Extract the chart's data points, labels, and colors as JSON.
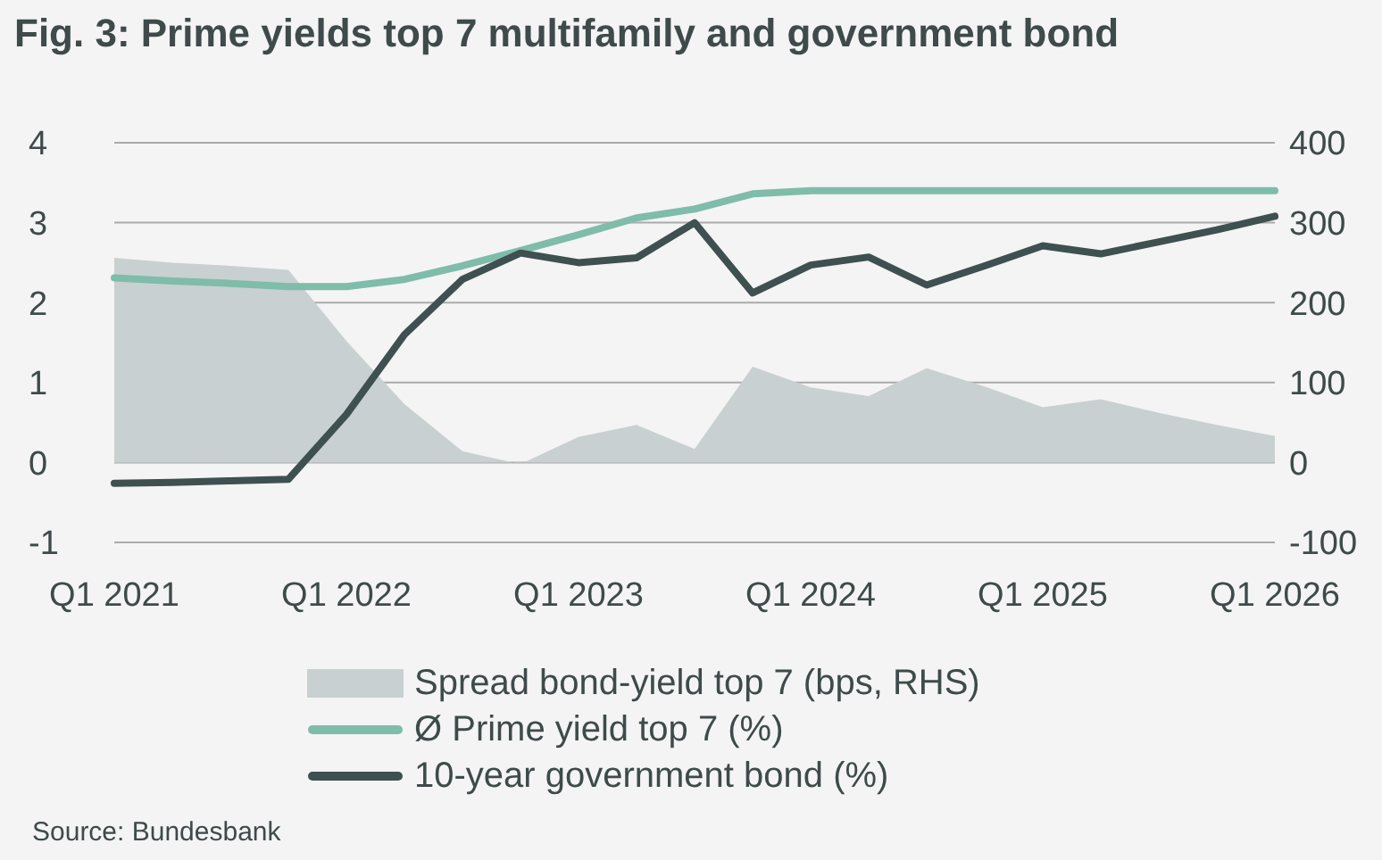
{
  "chart_data": {
    "type": "line",
    "title": "Fig. 3: Prime yields top 7 multifamily and government bond",
    "categories": [
      "Q1 2021",
      null,
      null,
      null,
      "Q1 2022",
      null,
      null,
      null,
      "Q1 2023",
      null,
      null,
      null,
      "Q1 2024",
      null,
      null,
      null,
      "Q1 2025",
      null,
      null,
      null,
      "Q1 2026"
    ],
    "series": [
      {
        "name": "Spread bond-yield top 7 (bps, RHS)",
        "type": "area",
        "axis": "y2",
        "color": "#c9d0d1",
        "values": [
          256,
          250,
          246,
          241,
          152,
          73,
          14,
          -2,
          32,
          47,
          17,
          120,
          94,
          83,
          118,
          95,
          69,
          79,
          62,
          47,
          33
        ]
      },
      {
        "name": "Ø Prime yield top 7 (%)",
        "color": "#7fbcaa",
        "values": [
          2.31,
          2.27,
          2.24,
          2.2,
          2.2,
          2.29,
          2.46,
          2.65,
          2.85,
          3.06,
          3.17,
          3.36,
          3.4,
          3.4,
          3.4,
          3.4,
          3.4,
          3.4,
          3.4,
          3.4,
          3.4
        ]
      },
      {
        "name": "10-year government bond (%)",
        "color": "#3f5050",
        "values": [
          -0.26,
          -0.25,
          -0.23,
          -0.21,
          0.6,
          1.6,
          2.29,
          2.62,
          2.5,
          2.56,
          3.0,
          2.12,
          2.47,
          2.57,
          2.22,
          2.46,
          2.71,
          2.61,
          2.76,
          2.91,
          3.08
        ]
      }
    ],
    "ylim": [
      -1,
      4
    ],
    "yticks": [
      -1,
      0,
      1,
      2,
      3,
      4
    ],
    "y2lim": [
      -100,
      400
    ],
    "y2ticks": [
      -100,
      0,
      100,
      200,
      300,
      400
    ],
    "grid": "y",
    "legend": "bottom",
    "marker": "none",
    "line_style": "solid",
    "annotations": [
      "Source: Bundesbank"
    ]
  }
}
